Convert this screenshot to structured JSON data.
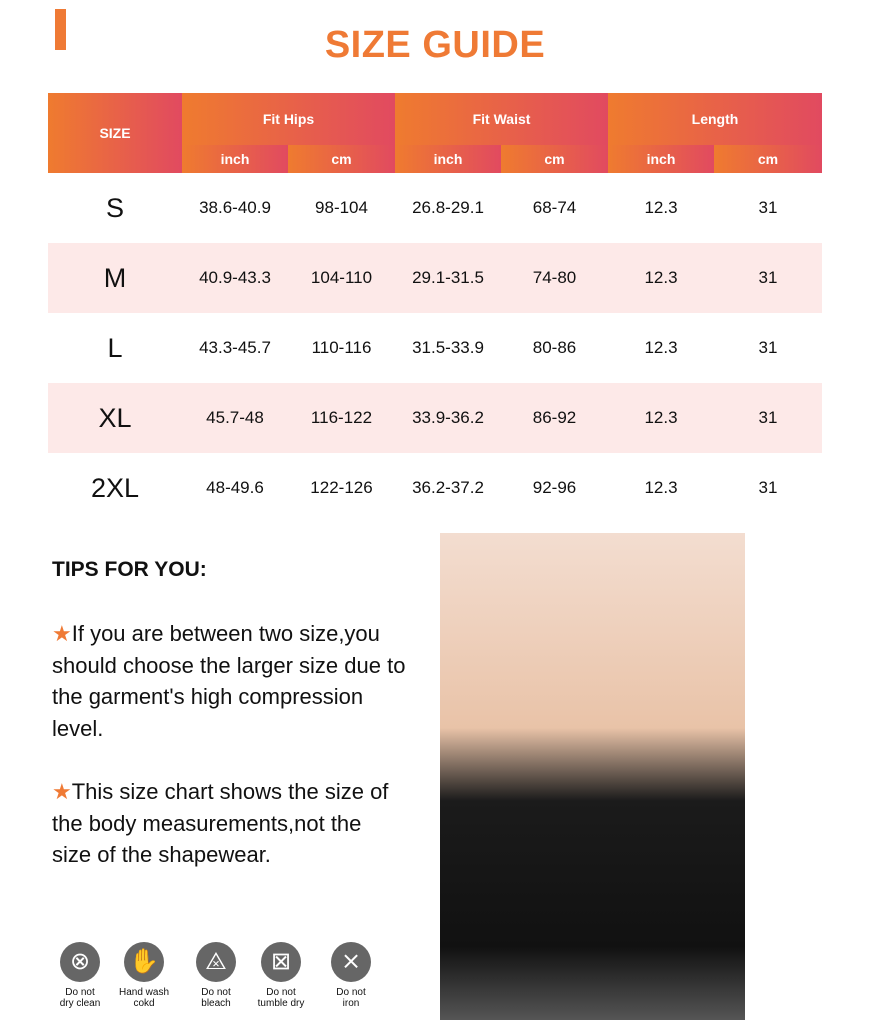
{
  "title": "SIZE GUIDE",
  "table": {
    "size_header": "SIZE",
    "groups": [
      "Fit Hips",
      "Fit Waist",
      "Length"
    ],
    "units": [
      "inch",
      "cm",
      "inch",
      "cm",
      "inch",
      "cm"
    ],
    "rows": [
      [
        "S",
        "38.6-40.9",
        "98-104",
        "26.8-29.1",
        "68-74",
        "12.3",
        "31"
      ],
      [
        "M",
        "40.9-43.3",
        "104-110",
        "29.1-31.5",
        "74-80",
        "12.3",
        "31"
      ],
      [
        "L",
        "43.3-45.7",
        "110-116",
        "31.5-33.9",
        "80-86",
        "12.3",
        "31"
      ],
      [
        "XL",
        "45.7-48",
        "116-122",
        "33.9-36.2",
        "86-92",
        "12.3",
        "31"
      ],
      [
        "2XL",
        "48-49.6",
        "122-126",
        "36.2-37.2",
        "92-96",
        "12.3",
        "31"
      ]
    ]
  },
  "tips": {
    "heading": "TIPS FOR YOU:",
    "star": "★",
    "items": [
      "If you are between two size,you should choose the larger size due to the garment's high compression level.",
      "This size chart shows the size of the body measurements,not the size of the shapewear."
    ]
  },
  "care": [
    {
      "icon": "no-dry-clean-icon",
      "glyph": "⊗",
      "label1": "Do not",
      "label2": "dry clean"
    },
    {
      "icon": "hand-wash-icon",
      "glyph": "✋",
      "label1": "Hand wash",
      "label2": "cokd"
    },
    {
      "icon": "no-bleach-icon",
      "glyph": "⨻",
      "label1": "Do not",
      "label2": "bleach"
    },
    {
      "icon": "no-tumble-dry-icon",
      "glyph": "⊠",
      "label1": "Do not",
      "label2": "tumble dry"
    },
    {
      "icon": "no-iron-icon",
      "glyph": "⨯",
      "label1": "Do not",
      "label2": "iron"
    }
  ],
  "colors": {
    "accent": "#ef7a35",
    "gradient_end": "#e14a60",
    "row_alt": "#fde9e8"
  }
}
